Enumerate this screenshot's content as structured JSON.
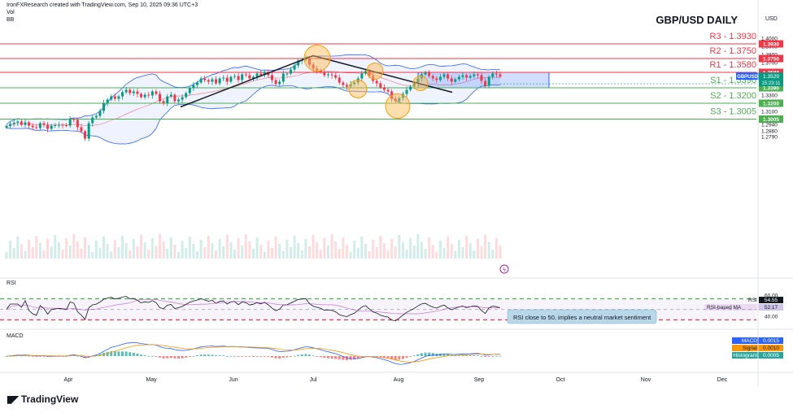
{
  "header": {
    "credit": "IronFXResearch created with TradingView.com, Sep 10, 2025 09:36 UTC+3",
    "indicators": [
      "Vol",
      "BB"
    ],
    "currency": "USD"
  },
  "footer": {
    "logo_text": "TradingView"
  },
  "colors": {
    "up": "#089981",
    "down": "#f23645",
    "resistance": "#f23645",
    "support": "#4caf50",
    "bb": "#2962ff",
    "rsi": "#131722",
    "rsi_ma": "#9c27b0",
    "macd": "#2962ff",
    "signal": "#ff9800"
  },
  "chart_data": [
    {
      "type": "candlestick",
      "title": "GBP/USD DAILY",
      "symbol": "GBPUSD",
      "last_price": 1.3529,
      "countdown": "15:23:11",
      "y_ticks": [
        1.4,
        1.39,
        1.38,
        1.37,
        1.36,
        1.35,
        1.34,
        1.33,
        1.32,
        1.31,
        1.3,
        1.294,
        1.286,
        1.279
      ],
      "x_ticks": [
        "Apr",
        "May",
        "Jun",
        "Jul",
        "Aug",
        "Sep",
        "Oct",
        "Nov",
        "Dec"
      ],
      "levels": [
        {
          "name": "R3",
          "label": "R3 - 1.3930",
          "value": 1.393,
          "tag": "1.3930",
          "kind": "resistance"
        },
        {
          "name": "R2",
          "label": "R2 - 1.3750",
          "value": 1.375,
          "tag": "1.3750",
          "kind": "resistance"
        },
        {
          "name": "R1",
          "label": "R1 - 1.3580",
          "value": 1.358,
          "tag": "1.3580",
          "kind": "resistance"
        },
        {
          "name": "S1",
          "label": "S1 - 1.3390",
          "value": 1.339,
          "tag": "1.3390",
          "kind": "support"
        },
        {
          "name": "S2",
          "label": "S2 - 1.3200",
          "value": 1.32,
          "tag": "1.3200",
          "kind": "support"
        },
        {
          "name": "S3",
          "label": "S3 - 1.3005",
          "value": 1.3005,
          "tag": "1.3005",
          "kind": "support"
        }
      ],
      "close_series": [
        1.292,
        1.2945,
        1.296,
        1.2975,
        1.2935,
        1.2965,
        1.2925,
        1.2905,
        1.2895,
        1.2955,
        1.2935,
        1.2885,
        1.2925,
        1.293,
        1.2935,
        1.293,
        1.2925,
        1.3005,
        1.2995,
        1.2905,
        1.2855,
        1.2765,
        1.2955,
        1.3025,
        1.3045,
        1.3105,
        1.3205,
        1.3245,
        1.3285,
        1.3255,
        1.3285,
        1.3335,
        1.3365,
        1.3325,
        1.3345,
        1.3315,
        1.3275,
        1.3305,
        1.3295,
        1.3345,
        1.3315,
        1.3225,
        1.3205,
        1.3285,
        1.3305,
        1.3225,
        1.3245,
        1.3275,
        1.3325,
        1.3385,
        1.3425,
        1.3455,
        1.3505,
        1.3485,
        1.3465,
        1.3495,
        1.3445,
        1.3505,
        1.3515,
        1.3465,
        1.3525,
        1.3535,
        1.3485,
        1.3555,
        1.3545,
        1.3505,
        1.3525,
        1.3565,
        1.3545,
        1.3585,
        1.3545,
        1.3485,
        1.3435,
        1.3465,
        1.3565,
        1.3565,
        1.3615,
        1.3665,
        1.3725,
        1.3735,
        1.3755,
        1.3675,
        1.3625,
        1.3605,
        1.3585,
        1.3545,
        1.3555,
        1.3545,
        1.3515,
        1.3455,
        1.3425,
        1.3405,
        1.3435,
        1.3455,
        1.3505,
        1.3565,
        1.3595,
        1.3535,
        1.3475,
        1.3445,
        1.3395,
        1.3365,
        1.3345,
        1.3255,
        1.3225,
        1.3265,
        1.3315,
        1.3365,
        1.3405,
        1.3445,
        1.3505,
        1.3555,
        1.3575,
        1.3535,
        1.3505,
        1.3485,
        1.3525,
        1.3555,
        1.3505,
        1.3465,
        1.3495,
        1.3525,
        1.3545,
        1.3515,
        1.3535,
        1.3555,
        1.3545,
        1.3475,
        1.3415,
        1.3525,
        1.3565,
        1.3555,
        1.3529
      ],
      "rsi": {
        "label": "RSI",
        "value": 54.55,
        "ma_label": "RSI-based MA",
        "ma_value": 52.17,
        "levels": [
          70,
          50,
          30
        ],
        "ticks": [
          60.0,
          40.0
        ]
      },
      "macd": {
        "macd_label": "MACD",
        "macd": 0.0015,
        "signal_label": "Signal",
        "signal": 0.001,
        "hist_label": "Histogram",
        "hist": 0.0005
      },
      "annotation": "RSI close to 50, implies a neutral market sentiment"
    }
  ]
}
